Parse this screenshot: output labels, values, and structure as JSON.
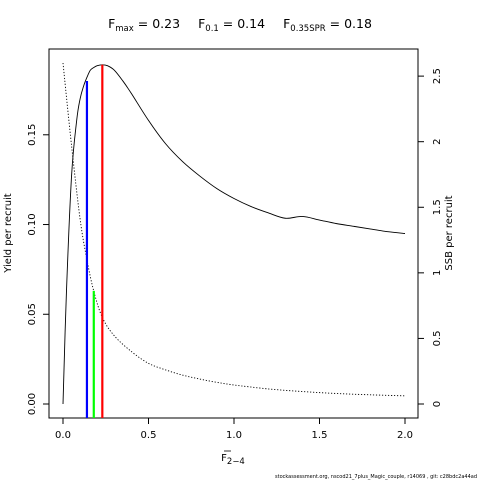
{
  "title": {
    "fmax": {
      "symbol": "F",
      "sub": "max",
      "value": "0.23"
    },
    "f01": {
      "symbol": "F",
      "sub": "0.1",
      "value": "0.14"
    },
    "fspr": {
      "symbol": "F",
      "sub": "0.35SPR",
      "value": "0.18"
    }
  },
  "axes": {
    "x_title_symbol": "F",
    "x_title_sub": "2−4",
    "y_left_title": "Yield per recruit",
    "y_right_title": "SSB per recruit"
  },
  "footer": "stockassessment.org, nscod21_7plus_Magic_couple, r14069 , git: c28bdc2a44ad",
  "chart_data": {
    "type": "line",
    "xlim": [
      0,
      2
    ],
    "ylim_left": [
      0,
      0.19
    ],
    "ylim_right": [
      0,
      2.6
    ],
    "x_ticks": [
      0,
      0.5,
      1.0,
      1.5,
      2.0
    ],
    "x_tick_labels": [
      "0.0",
      "0.5",
      "1.0",
      "1.5",
      "2.0"
    ],
    "y_left_ticks": [
      0,
      0.05,
      0.1,
      0.15
    ],
    "y_left_tick_labels": [
      "0.00",
      "0.05",
      "0.10",
      "0.15"
    ],
    "y_right_ticks": [
      0,
      0.5,
      1,
      1.5,
      2,
      2.5
    ],
    "y_right_tick_labels": [
      "0",
      "0.5",
      "1",
      "1.5",
      "2",
      "2.5"
    ],
    "grid": false,
    "series": [
      {
        "style": "solid",
        "axis": "left",
        "x": [
          0,
          0.02,
          0.05,
          0.08,
          0.1,
          0.12,
          0.14,
          0.16,
          0.18,
          0.2,
          0.23,
          0.26,
          0.3,
          0.35,
          0.4,
          0.5,
          0.6,
          0.7,
          0.8,
          0.9,
          1.0,
          1.1,
          1.2,
          1.3,
          1.4,
          1.5,
          1.6,
          1.7,
          1.8,
          1.9,
          2.0
        ],
        "y": [
          0,
          0.062,
          0.127,
          0.158,
          0.17,
          0.177,
          0.182,
          0.186,
          0.1875,
          0.1885,
          0.189,
          0.1885,
          0.186,
          0.18,
          0.173,
          0.158,
          0.145,
          0.135,
          0.127,
          0.12,
          0.1145,
          0.11,
          0.1065,
          0.1035,
          0.1045,
          0.1025,
          0.1005,
          0.099,
          0.0975,
          0.096,
          0.095
        ]
      },
      {
        "style": "dotted",
        "axis": "right",
        "x": [
          0,
          0.05,
          0.1,
          0.14,
          0.18,
          0.23,
          0.3,
          0.4,
          0.5,
          0.6,
          0.7,
          0.8,
          0.9,
          1.0,
          1.2,
          1.4,
          1.6,
          1.8,
          2.0
        ],
        "y": [
          2.6,
          1.97,
          1.41,
          1.1,
          0.86,
          0.66,
          0.52,
          0.4,
          0.31,
          0.26,
          0.22,
          0.19,
          0.165,
          0.145,
          0.115,
          0.095,
          0.08,
          0.07,
          0.062
        ]
      }
    ],
    "reference_lines": [
      {
        "x": 0.14,
        "y": 0.18,
        "color": "#0000ff",
        "axis": "left"
      },
      {
        "x": 0.18,
        "y": 0.063,
        "color": "#00ff00",
        "axis": "left"
      },
      {
        "x": 0.23,
        "y": 0.189,
        "color": "#ff0000",
        "axis": "left"
      }
    ]
  }
}
